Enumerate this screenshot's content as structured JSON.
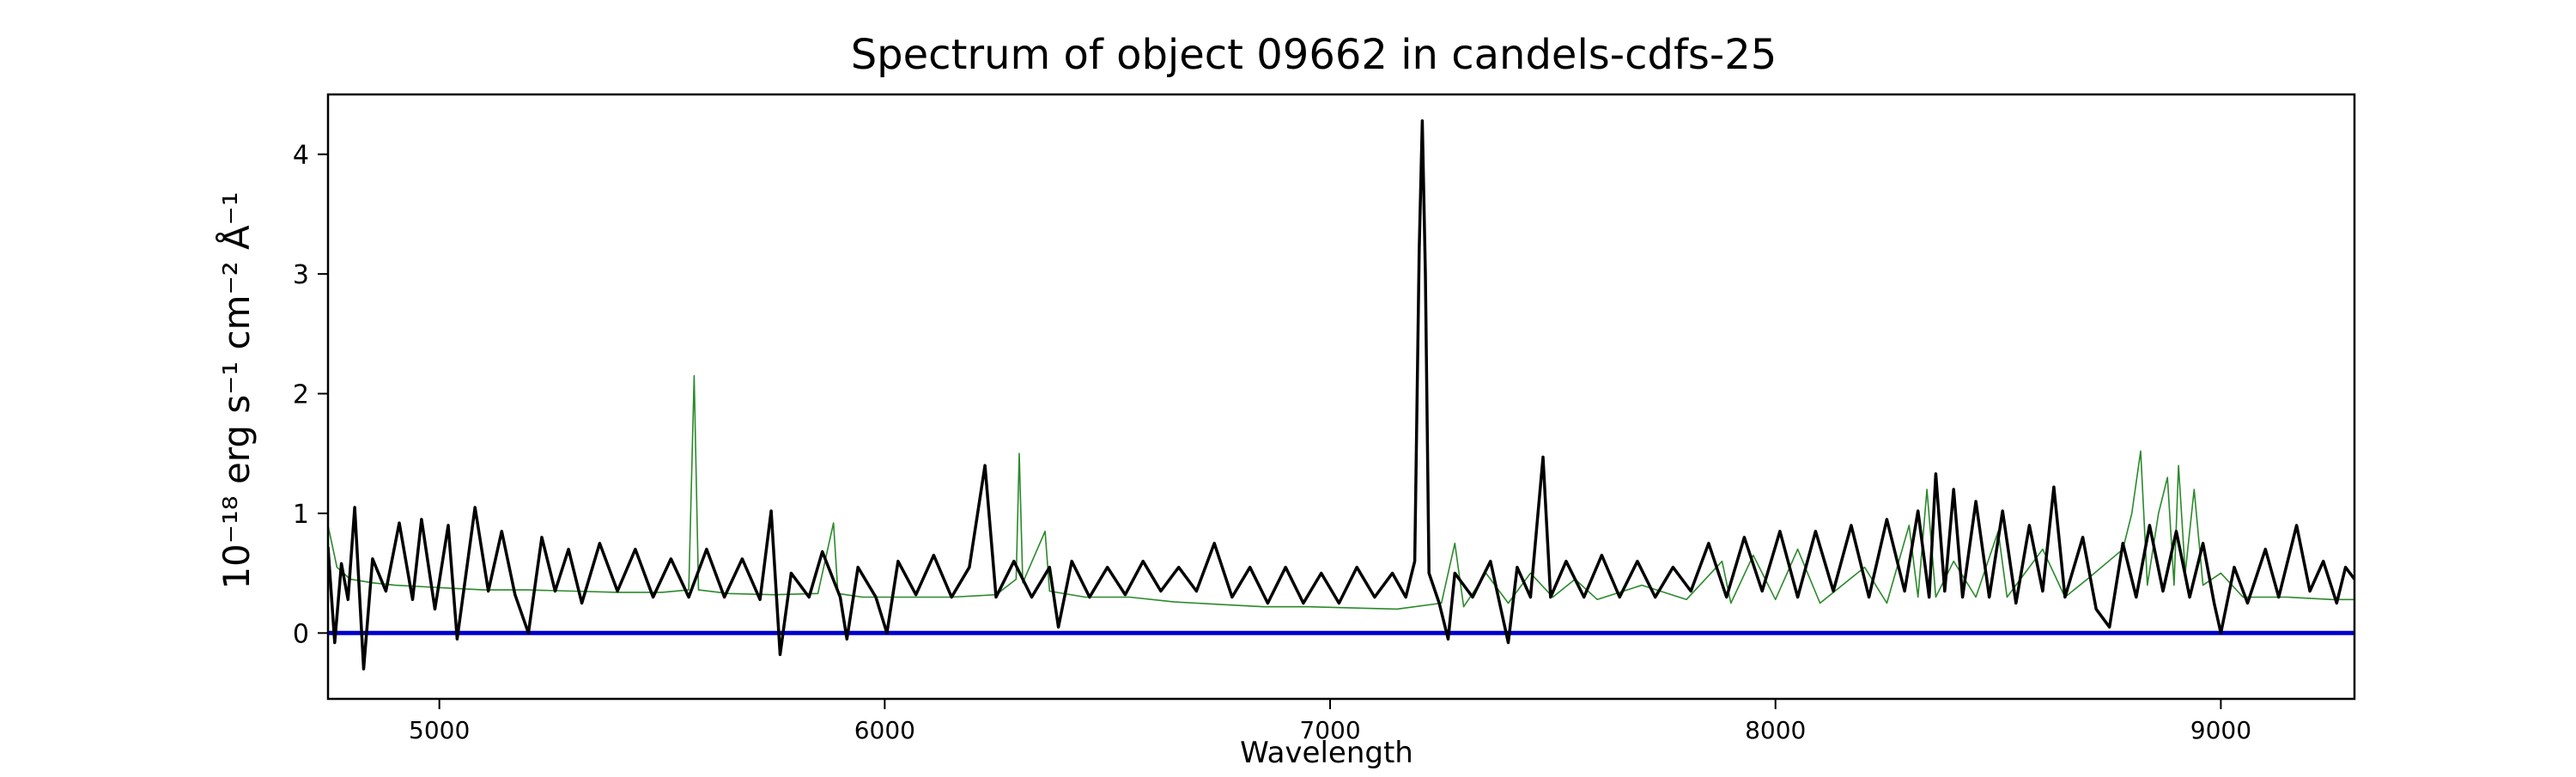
{
  "chart_data": {
    "type": "line",
    "title": "Spectrum of object 09662 in candels-cdfs-25",
    "xlabel": "Wavelength",
    "ylabel": "10⁻¹⁸ erg s⁻¹ cm⁻² Å⁻¹",
    "xlim": [
      4750,
      9300
    ],
    "ylim": [
      -0.55,
      4.5
    ],
    "xticks": [
      5000,
      6000,
      7000,
      8000,
      9000
    ],
    "xtick_labels": [
      "5000",
      "6000",
      "7000",
      "8000",
      "9000"
    ],
    "yticks": [
      0,
      1,
      2,
      3,
      4
    ],
    "ytick_labels": [
      "0",
      "1",
      "2",
      "3",
      "4"
    ],
    "grid": false,
    "series": [
      {
        "color": "#000000",
        "role": "flux",
        "points": [
          [
            4750,
            0.72
          ],
          [
            4765,
            -0.08
          ],
          [
            4780,
            0.58
          ],
          [
            4795,
            0.28
          ],
          [
            4810,
            1.05
          ],
          [
            4830,
            -0.3
          ],
          [
            4850,
            0.62
          ],
          [
            4880,
            0.35
          ],
          [
            4910,
            0.92
          ],
          [
            4940,
            0.28
          ],
          [
            4960,
            0.95
          ],
          [
            4990,
            0.2
          ],
          [
            5020,
            0.9
          ],
          [
            5040,
            -0.05
          ],
          [
            5080,
            1.05
          ],
          [
            5110,
            0.35
          ],
          [
            5140,
            0.85
          ],
          [
            5170,
            0.32
          ],
          [
            5200,
            0.0
          ],
          [
            5230,
            0.8
          ],
          [
            5260,
            0.35
          ],
          [
            5290,
            0.7
          ],
          [
            5320,
            0.25
          ],
          [
            5360,
            0.75
          ],
          [
            5400,
            0.35
          ],
          [
            5440,
            0.7
          ],
          [
            5480,
            0.3
          ],
          [
            5520,
            0.62
          ],
          [
            5560,
            0.3
          ],
          [
            5600,
            0.7
          ],
          [
            5640,
            0.3
          ],
          [
            5680,
            0.62
          ],
          [
            5720,
            0.28
          ],
          [
            5745,
            1.02
          ],
          [
            5765,
            -0.18
          ],
          [
            5790,
            0.5
          ],
          [
            5830,
            0.3
          ],
          [
            5860,
            0.68
          ],
          [
            5900,
            0.3
          ],
          [
            5915,
            -0.05
          ],
          [
            5940,
            0.55
          ],
          [
            5980,
            0.3
          ],
          [
            6005,
            0.0
          ],
          [
            6030,
            0.6
          ],
          [
            6070,
            0.32
          ],
          [
            6110,
            0.65
          ],
          [
            6150,
            0.3
          ],
          [
            6190,
            0.55
          ],
          [
            6225,
            1.4
          ],
          [
            6250,
            0.3
          ],
          [
            6290,
            0.6
          ],
          [
            6330,
            0.3
          ],
          [
            6370,
            0.55
          ],
          [
            6390,
            0.05
          ],
          [
            6420,
            0.6
          ],
          [
            6460,
            0.3
          ],
          [
            6500,
            0.55
          ],
          [
            6540,
            0.32
          ],
          [
            6580,
            0.6
          ],
          [
            6620,
            0.35
          ],
          [
            6660,
            0.55
          ],
          [
            6700,
            0.35
          ],
          [
            6740,
            0.75
          ],
          [
            6780,
            0.3
          ],
          [
            6820,
            0.55
          ],
          [
            6860,
            0.25
          ],
          [
            6900,
            0.55
          ],
          [
            6940,
            0.25
          ],
          [
            6980,
            0.5
          ],
          [
            7020,
            0.25
          ],
          [
            7060,
            0.55
          ],
          [
            7100,
            0.3
          ],
          [
            7140,
            0.5
          ],
          [
            7170,
            0.3
          ],
          [
            7190,
            0.6
          ],
          [
            7200,
            3.2
          ],
          [
            7207,
            4.28
          ],
          [
            7214,
            3.0
          ],
          [
            7222,
            0.5
          ],
          [
            7245,
            0.25
          ],
          [
            7265,
            -0.05
          ],
          [
            7280,
            0.5
          ],
          [
            7320,
            0.3
          ],
          [
            7360,
            0.6
          ],
          [
            7400,
            -0.08
          ],
          [
            7420,
            0.55
          ],
          [
            7450,
            0.3
          ],
          [
            7478,
            1.47
          ],
          [
            7495,
            0.3
          ],
          [
            7530,
            0.6
          ],
          [
            7570,
            0.3
          ],
          [
            7610,
            0.65
          ],
          [
            7650,
            0.3
          ],
          [
            7690,
            0.6
          ],
          [
            7730,
            0.3
          ],
          [
            7770,
            0.55
          ],
          [
            7810,
            0.35
          ],
          [
            7850,
            0.75
          ],
          [
            7890,
            0.3
          ],
          [
            7930,
            0.8
          ],
          [
            7970,
            0.35
          ],
          [
            8010,
            0.85
          ],
          [
            8050,
            0.3
          ],
          [
            8090,
            0.85
          ],
          [
            8130,
            0.35
          ],
          [
            8170,
            0.9
          ],
          [
            8210,
            0.3
          ],
          [
            8250,
            0.95
          ],
          [
            8290,
            0.35
          ],
          [
            8320,
            1.02
          ],
          [
            8345,
            0.3
          ],
          [
            8360,
            1.33
          ],
          [
            8380,
            0.35
          ],
          [
            8400,
            1.2
          ],
          [
            8420,
            0.3
          ],
          [
            8450,
            1.1
          ],
          [
            8480,
            0.3
          ],
          [
            8510,
            1.02
          ],
          [
            8540,
            0.25
          ],
          [
            8570,
            0.9
          ],
          [
            8600,
            0.35
          ],
          [
            8625,
            1.22
          ],
          [
            8650,
            0.3
          ],
          [
            8690,
            0.8
          ],
          [
            8720,
            0.2
          ],
          [
            8750,
            0.05
          ],
          [
            8780,
            0.75
          ],
          [
            8810,
            0.3
          ],
          [
            8840,
            0.9
          ],
          [
            8870,
            0.35
          ],
          [
            8900,
            0.85
          ],
          [
            8930,
            0.3
          ],
          [
            8960,
            0.75
          ],
          [
            8985,
            0.25
          ],
          [
            9000,
            0.0
          ],
          [
            9030,
            0.55
          ],
          [
            9060,
            0.25
          ],
          [
            9100,
            0.7
          ],
          [
            9130,
            0.3
          ],
          [
            9170,
            0.9
          ],
          [
            9200,
            0.35
          ],
          [
            9230,
            0.6
          ],
          [
            9260,
            0.25
          ],
          [
            9280,
            0.55
          ],
          [
            9300,
            0.45
          ]
        ]
      },
      {
        "color": "#2a8a2a",
        "role": "error",
        "points": [
          [
            4750,
            0.9
          ],
          [
            4770,
            0.55
          ],
          [
            4800,
            0.45
          ],
          [
            4850,
            0.42
          ],
          [
            4900,
            0.4
          ],
          [
            5000,
            0.38
          ],
          [
            5100,
            0.36
          ],
          [
            5200,
            0.36
          ],
          [
            5300,
            0.35
          ],
          [
            5400,
            0.34
          ],
          [
            5500,
            0.34
          ],
          [
            5560,
            0.36
          ],
          [
            5572,
            2.15
          ],
          [
            5582,
            0.36
          ],
          [
            5650,
            0.33
          ],
          [
            5750,
            0.32
          ],
          [
            5850,
            0.33
          ],
          [
            5885,
            0.92
          ],
          [
            5895,
            0.33
          ],
          [
            5950,
            0.3
          ],
          [
            6050,
            0.3
          ],
          [
            6150,
            0.3
          ],
          [
            6250,
            0.32
          ],
          [
            6295,
            0.45
          ],
          [
            6302,
            1.5
          ],
          [
            6310,
            0.42
          ],
          [
            6360,
            0.85
          ],
          [
            6370,
            0.35
          ],
          [
            6450,
            0.3
          ],
          [
            6550,
            0.3
          ],
          [
            6650,
            0.26
          ],
          [
            6750,
            0.24
          ],
          [
            6850,
            0.22
          ],
          [
            6950,
            0.22
          ],
          [
            7050,
            0.21
          ],
          [
            7150,
            0.2
          ],
          [
            7250,
            0.25
          ],
          [
            7280,
            0.75
          ],
          [
            7300,
            0.22
          ],
          [
            7350,
            0.5
          ],
          [
            7400,
            0.25
          ],
          [
            7450,
            0.5
          ],
          [
            7500,
            0.3
          ],
          [
            7550,
            0.45
          ],
          [
            7600,
            0.28
          ],
          [
            7700,
            0.4
          ],
          [
            7800,
            0.28
          ],
          [
            7880,
            0.6
          ],
          [
            7900,
            0.25
          ],
          [
            7950,
            0.65
          ],
          [
            8000,
            0.28
          ],
          [
            8050,
            0.7
          ],
          [
            8100,
            0.25
          ],
          [
            8200,
            0.55
          ],
          [
            8250,
            0.25
          ],
          [
            8300,
            0.9
          ],
          [
            8320,
            0.3
          ],
          [
            8340,
            1.2
          ],
          [
            8360,
            0.3
          ],
          [
            8400,
            0.6
          ],
          [
            8450,
            0.3
          ],
          [
            8500,
            0.85
          ],
          [
            8520,
            0.3
          ],
          [
            8600,
            0.7
          ],
          [
            8650,
            0.3
          ],
          [
            8700,
            0.45
          ],
          [
            8780,
            0.7
          ],
          [
            8800,
            1.0
          ],
          [
            8820,
            1.52
          ],
          [
            8835,
            0.4
          ],
          [
            8860,
            1.0
          ],
          [
            8880,
            1.3
          ],
          [
            8895,
            0.4
          ],
          [
            8905,
            1.4
          ],
          [
            8920,
            0.5
          ],
          [
            8940,
            1.2
          ],
          [
            8960,
            0.4
          ],
          [
            9000,
            0.5
          ],
          [
            9050,
            0.3
          ],
          [
            9150,
            0.3
          ],
          [
            9250,
            0.28
          ],
          [
            9300,
            0.28
          ]
        ]
      },
      {
        "color": "#0000cc",
        "role": "zero-line",
        "points": [
          [
            4750,
            0
          ],
          [
            9300,
            0
          ]
        ]
      }
    ]
  }
}
